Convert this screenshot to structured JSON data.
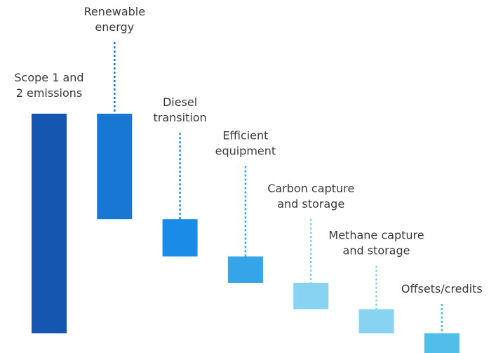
{
  "chart_data": {
    "type": "waterfall",
    "categories": [
      "Scope 1 and\n2 emissions",
      "Renewable\nenergy",
      "Diesel\ntransition",
      "Efficient\nequipment",
      "Carbon capture\nand storage",
      "Methane capture\nand storage",
      "Offsets/credits"
    ],
    "values": [
      100,
      -48,
      -17,
      -12,
      -12,
      -11,
      -13
    ],
    "colors": [
      "#1557b0",
      "#1877d2",
      "#1a8be6",
      "#35a4e8",
      "#86d3f2",
      "#86d3f2",
      "#4fbfea"
    ]
  }
}
